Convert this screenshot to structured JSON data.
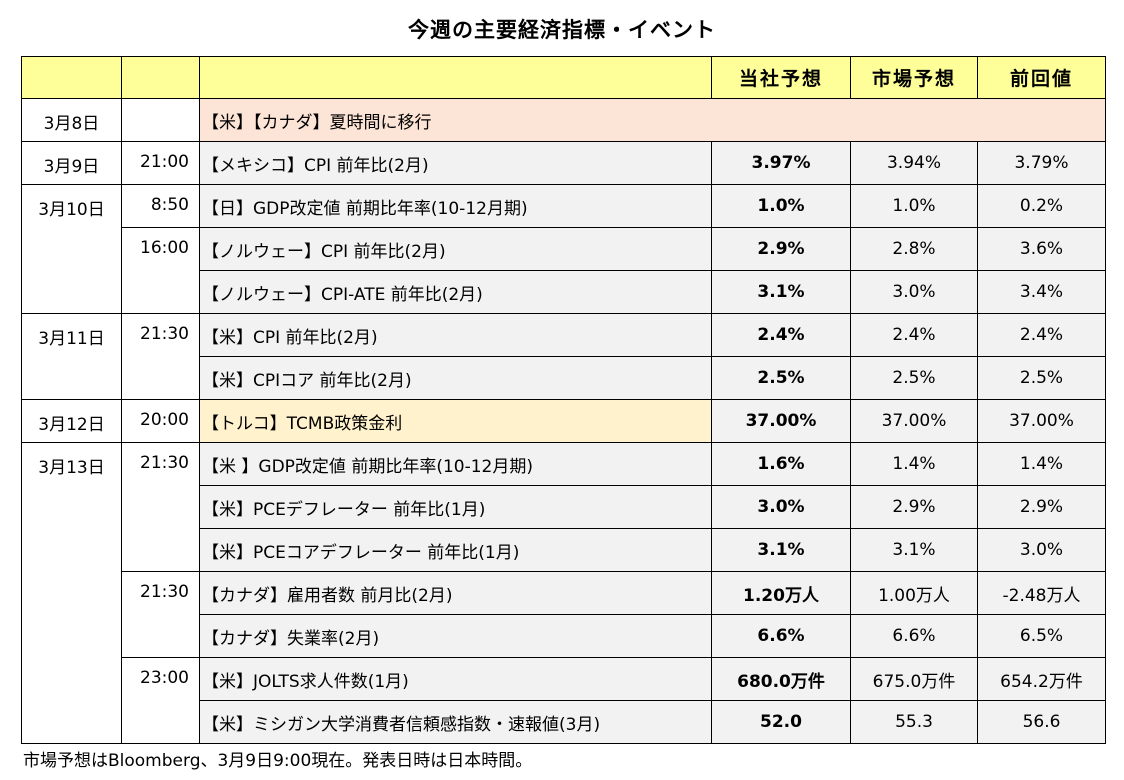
{
  "title": "今週の主要経済指標・イベント",
  "header": {
    "col_date": "",
    "col_time": "",
    "col_event": "",
    "col_ours": "当社予想",
    "col_market": "市場予想",
    "col_prev": "前回値"
  },
  "colors": {
    "header_bg": "#ffff99",
    "holiday_bg": "#fce4d6",
    "highlight_bg": "#fff2cc",
    "cell_bg": "#f2f2f2"
  },
  "rows": [
    {
      "date": "3月8日",
      "time": "",
      "event": "【米】【カナダ】夏時間に移行",
      "ours": "",
      "market": "",
      "prev": "",
      "span": "full"
    },
    {
      "date": "3月9日",
      "time": "21:00",
      "event": "【メキシコ】CPI 前年比(2月)",
      "ours": "3.97%",
      "market": "3.94%",
      "prev": "3.79%"
    },
    {
      "date": "3月10日",
      "time": "8:50",
      "event": "【日】GDP改定値 前期比年率(10-12月期)",
      "ours": "1.0%",
      "market": "1.0%",
      "prev": "0.2%"
    },
    {
      "date": "",
      "time": "16:00",
      "event": "【ノルウェー】CPI 前年比(2月)",
      "ours": "2.9%",
      "market": "2.8%",
      "prev": "3.6%"
    },
    {
      "date": "",
      "time": "",
      "event": "【ノルウェー】CPI-ATE 前年比(2月)",
      "ours": "3.1%",
      "market": "3.0%",
      "prev": "3.4%"
    },
    {
      "date": "3月11日",
      "time": "21:30",
      "event": "【米】CPI 前年比(2月)",
      "ours": "2.4%",
      "market": "2.4%",
      "prev": "2.4%"
    },
    {
      "date": "",
      "time": "",
      "event": "【米】CPIコア 前年比(2月)",
      "ours": "2.5%",
      "market": "2.5%",
      "prev": "2.5%"
    },
    {
      "date": "3月12日",
      "time": "20:00",
      "event": "【トルコ】TCMB政策金利",
      "ours": "37.00%",
      "market": "37.00%",
      "prev": "37.00%",
      "highlight": true
    },
    {
      "date": "3月13日",
      "time": "21:30",
      "event": "【米 】GDP改定値 前期比年率(10-12月期)",
      "ours": "1.6%",
      "market": "1.4%",
      "prev": "1.4%"
    },
    {
      "date": "",
      "time": "",
      "event": "【米】PCEデフレーター 前年比(1月)",
      "ours": "3.0%",
      "market": "2.9%",
      "prev": "2.9%"
    },
    {
      "date": "",
      "time": "",
      "event": "【米】PCEコアデフレーター 前年比(1月)",
      "ours": "3.1%",
      "market": "3.1%",
      "prev": "3.0%"
    },
    {
      "date": "",
      "time": "21:30",
      "event": "【カナダ】雇用者数 前月比(2月)",
      "ours": "1.20万人",
      "market": "1.00万人",
      "prev": "-2.48万人"
    },
    {
      "date": "",
      "time": "",
      "event": "【カナダ】失業率(2月)",
      "ours": "6.6%",
      "market": "6.6%",
      "prev": "6.5%"
    },
    {
      "date": "",
      "time": "23:00",
      "event": "【米】JOLTS求人件数(1月)",
      "ours": "680.0万件",
      "market": "675.0万件",
      "prev": "654.2万件"
    },
    {
      "date": "",
      "time": "",
      "event": "【米】ミシガン大学消費者信頼感指数・速報値(3月)",
      "ours": "52.0",
      "market": "55.3",
      "prev": "56.6"
    }
  ],
  "footnote": "市場予想はBloomberg、3月9日9:00現在。発表日時は日本時間。"
}
